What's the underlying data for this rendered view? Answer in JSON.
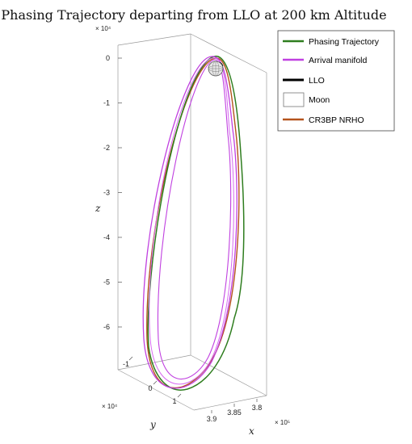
{
  "chart_data": {
    "type": "line",
    "title": "Phasing Trajectory departing from LLO at 200 km Altitude",
    "xlabel": "x",
    "ylabel": "y",
    "zlabel": "z",
    "x_multiplier": "× 10⁵",
    "y_multiplier": "× 10⁴",
    "z_multiplier": "× 10⁴",
    "x_ticks": [
      "3.9",
      "3.85",
      "3.8"
    ],
    "y_ticks": [
      "-1",
      "0",
      "1"
    ],
    "z_ticks": [
      "0",
      "-1",
      "-2",
      "-3",
      "-4",
      "-5",
      "-6"
    ],
    "zlim": [
      -7.2,
      0.3
    ],
    "legend_position": "top-right",
    "series": [
      {
        "name": "Phasing Trajectory",
        "color": "#2e7d1e"
      },
      {
        "name": "Arrival manifold",
        "color": "#c040e0"
      },
      {
        "name": "LLO",
        "color": "#000000"
      },
      {
        "name": "Moon",
        "color": "#ffffff"
      },
      {
        "name": "CR3BP NRHO",
        "color": "#b5531d"
      }
    ]
  }
}
